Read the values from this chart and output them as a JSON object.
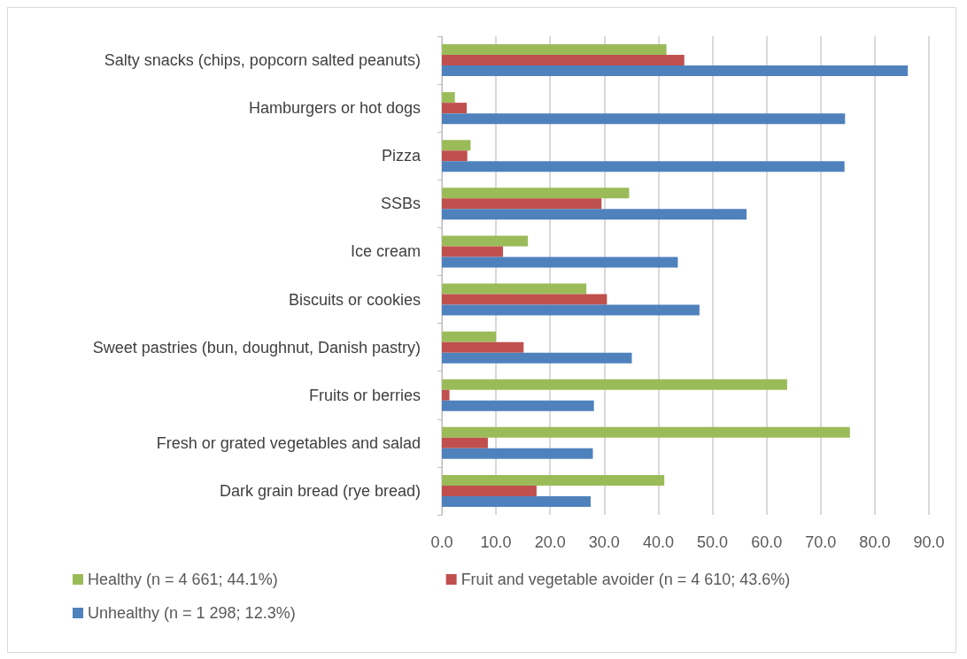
{
  "chart_data": {
    "type": "bar",
    "orientation": "horizontal",
    "categories": [
      "Salty snacks (chips, popcorn salted peanuts)",
      "Hamburgers or hot dogs",
      "Pizza",
      "SSBs",
      "Ice cream",
      "Biscuits or cookies",
      "Sweet pastries (bun, doughnut, Danish pastry)",
      "Fruits or berries",
      "Fresh or grated vegetables and salad",
      "Dark grain bread (rye bread)"
    ],
    "series": [
      {
        "name": "Healthy (n = 4 661; 44.1%)",
        "color": "#9bbb59",
        "values": [
          41.5,
          2.4,
          5.3,
          34.6,
          15.9,
          26.7,
          10.0,
          63.8,
          75.4,
          41.1
        ]
      },
      {
        "name": "Fruit and vegetable avoider (n = 4 610; 43.6%)",
        "color": "#c0504d",
        "values": [
          44.8,
          4.6,
          4.7,
          29.5,
          11.3,
          30.5,
          15.1,
          1.4,
          8.5,
          17.5
        ]
      },
      {
        "name": "Unhealthy (n = 1 298; 12.3%)",
        "color": "#4f81bd",
        "values": [
          86.1,
          74.5,
          74.4,
          56.3,
          43.6,
          47.6,
          35.1,
          28.1,
          27.9,
          27.5
        ]
      }
    ],
    "xlim": [
      0,
      90
    ],
    "xticks": [
      {
        "value": 0,
        "label": "0.0"
      },
      {
        "value": 10,
        "label": "10.0"
      },
      {
        "value": 20,
        "label": "20.0"
      },
      {
        "value": 30,
        "label": "30.0"
      },
      {
        "value": 40,
        "label": "40.0"
      },
      {
        "value": 50,
        "label": "50.0"
      },
      {
        "value": 60,
        "label": "60.0"
      },
      {
        "value": 70,
        "label": "70.0"
      },
      {
        "value": 80,
        "label": "80.0"
      },
      {
        "value": 90,
        "label": "90.0"
      }
    ],
    "grid": "x",
    "legend": "bottom"
  }
}
